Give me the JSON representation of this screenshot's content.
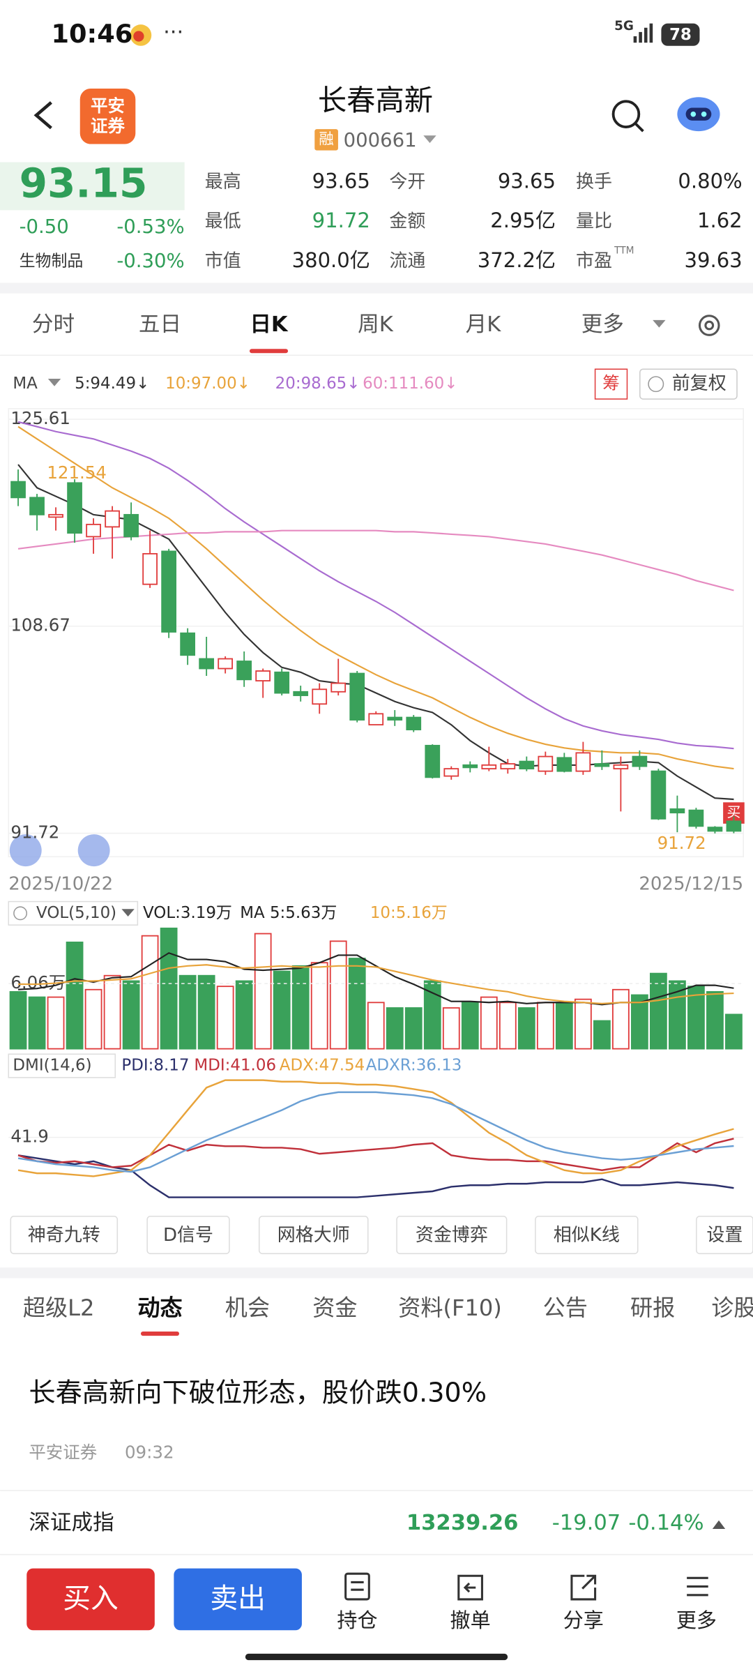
{
  "status_bar": {
    "time": "10:46",
    "network": "5G",
    "battery": "78"
  },
  "header": {
    "logo_line1": "平安",
    "logo_line2": "证券",
    "name": "长春高新",
    "badge": "融",
    "code": "000661"
  },
  "quote": {
    "price": "93.15",
    "change": "-0.50",
    "change_pct": "-0.53%",
    "sector": "生物制品",
    "sector_pct": "-0.30%",
    "fields": [
      {
        "label": "最高",
        "value": "93.65"
      },
      {
        "label": "今开",
        "value": "93.65"
      },
      {
        "label": "换手",
        "value": "0.80%"
      },
      {
        "label": "最低",
        "value": "91.72",
        "color": "#2f9e58"
      },
      {
        "label": "金额",
        "value": "2.95亿"
      },
      {
        "label": "量比",
        "value": "1.62"
      },
      {
        "label": "市值",
        "value": "380.0亿"
      },
      {
        "label": "流通",
        "value": "372.2亿"
      },
      {
        "label": "市盈",
        "sup": "TTM",
        "value": "39.63"
      }
    ]
  },
  "tabs": {
    "items": [
      "分时",
      "五日",
      "日K",
      "周K",
      "月K",
      "更多"
    ],
    "active": 2
  },
  "chart_data": [
    {
      "type": "candlestick",
      "legend_title": "MA",
      "chip_button": "筹",
      "adjust_button": "前复权",
      "annotations": {
        "high": "121.54",
        "low": "91.72",
        "buy_marker": "买"
      },
      "categories": [
        "2025/10/22",
        null,
        null,
        null,
        null,
        null,
        null,
        null,
        null,
        null,
        null,
        null,
        null,
        null,
        null,
        null,
        null,
        null,
        null,
        null,
        null,
        null,
        null,
        null,
        null,
        null,
        null,
        null,
        null,
        null,
        null,
        null,
        null,
        null,
        null,
        null,
        null,
        null,
        "2025/12/15"
      ],
      "open": [
        120.5,
        119.2,
        117.6,
        120.4,
        116.0,
        116.8,
        117.8,
        112.1,
        114.8,
        108.1,
        106.0,
        105.2,
        105.8,
        104.2,
        104.9,
        103.3,
        102.3,
        103.3,
        104.8,
        100.6,
        101.2,
        101.2,
        98.9,
        96.4,
        97.3,
        97.0,
        97.0,
        97.6,
        96.8,
        97.9,
        96.8,
        97.4,
        97.0,
        98.0,
        96.8,
        93.7,
        93.6,
        92.2,
        92.7
      ],
      "close": [
        119.2,
        117.8,
        117.8,
        116.3,
        117.0,
        118.1,
        116.0,
        114.6,
        108.2,
        106.3,
        105.2,
        106.0,
        104.3,
        105.0,
        103.2,
        103.0,
        103.5,
        104.0,
        101.0,
        101.5,
        101.0,
        100.2,
        96.3,
        97.0,
        97.1,
        97.3,
        97.4,
        97.0,
        98.0,
        96.8,
        98.3,
        97.2,
        97.3,
        97.2,
        92.9,
        93.4,
        92.3,
        91.9,
        91.9
      ],
      "high": [
        121.5,
        119.5,
        118.4,
        120.7,
        117.5,
        118.5,
        118.8,
        116.5,
        115.0,
        108.5,
        107.8,
        106.2,
        106.6,
        105.2,
        105.2,
        103.8,
        104.0,
        106.0,
        105.0,
        101.7,
        101.8,
        101.4,
        99.0,
        97.2,
        97.6,
        98.8,
        97.8,
        98.0,
        98.4,
        98.3,
        99.2,
        98.5,
        98.0,
        98.5,
        97.0,
        94.8,
        93.8,
        92.3,
        93.1
      ],
      "low": [
        118.5,
        116.5,
        116.5,
        115.5,
        114.6,
        114.2,
        115.7,
        111.8,
        107.7,
        105.5,
        104.6,
        104.8,
        103.7,
        102.8,
        103.0,
        102.5,
        101.5,
        103.0,
        100.8,
        100.6,
        100.5,
        100.0,
        96.2,
        96.1,
        96.7,
        96.8,
        96.6,
        96.8,
        96.5,
        96.7,
        96.5,
        96.9,
        93.5,
        96.9,
        92.8,
        91.8,
        92.1,
        91.7,
        91.72
      ],
      "up_color": "#e03c3c",
      "down_color": "#3aa15a",
      "ylim": [
        89.62,
        126.48
      ],
      "yticks": [
        125.61,
        108.67,
        91.72
      ],
      "grid": true,
      "series": [
        {
          "name": "5:94.49↓",
          "color": "#333333",
          "values": [
            121.9,
            120.0,
            119.3,
            118.6,
            117.8,
            117.6,
            117.4,
            116.6,
            115.8,
            113.8,
            111.8,
            109.8,
            108.0,
            106.5,
            105.3,
            104.9,
            104.2,
            104.0,
            103.9,
            103.2,
            102.5,
            102.0,
            101.6,
            100.6,
            99.3,
            98.3,
            97.4,
            97.2,
            97.3,
            97.3,
            97.3,
            97.4,
            97.5,
            97.6,
            97.5,
            96.4,
            95.5,
            94.6,
            94.49
          ]
        },
        {
          "name": "10:97.00↓",
          "color": "#e8a33a",
          "values": [
            125.0,
            124.0,
            123.0,
            122.0,
            121.0,
            120.0,
            119.2,
            118.4,
            117.5,
            116.3,
            115.0,
            113.6,
            112.2,
            110.8,
            109.5,
            108.3,
            107.2,
            106.3,
            105.5,
            104.7,
            104.0,
            103.4,
            102.8,
            102.0,
            101.2,
            100.5,
            99.9,
            99.4,
            99.0,
            98.7,
            98.5,
            98.4,
            98.3,
            98.3,
            98.2,
            97.8,
            97.5,
            97.2,
            97.0
          ]
        },
        {
          "name": "20:98.65↓",
          "color": "#a86bd0",
          "values": [
            125.4,
            125.0,
            124.6,
            124.3,
            124.0,
            123.5,
            123.0,
            122.4,
            121.6,
            120.6,
            119.5,
            118.3,
            117.2,
            116.2,
            115.2,
            114.2,
            113.2,
            112.3,
            111.5,
            110.7,
            109.8,
            108.8,
            107.8,
            106.8,
            105.8,
            104.8,
            103.8,
            102.8,
            101.9,
            101.1,
            100.5,
            100.1,
            99.8,
            99.6,
            99.4,
            99.1,
            98.9,
            98.8,
            98.65
          ]
        },
        {
          "name": "60:111.60↓",
          "color": "#e58ac0",
          "values": [
            115.0,
            115.2,
            115.4,
            115.6,
            115.8,
            115.9,
            116.0,
            116.1,
            116.2,
            116.3,
            116.3,
            116.4,
            116.4,
            116.4,
            116.5,
            116.5,
            116.5,
            116.5,
            116.5,
            116.5,
            116.4,
            116.4,
            116.3,
            116.2,
            116.1,
            116.0,
            115.8,
            115.6,
            115.4,
            115.1,
            114.8,
            114.5,
            114.1,
            113.7,
            113.3,
            112.9,
            112.4,
            112.0,
            111.6
          ]
        }
      ]
    },
    {
      "type": "bar",
      "title": "VOL(5,10)",
      "current": "VOL:3.19万",
      "values": [
        5.3,
        4.8,
        4.8,
        9.9,
        5.5,
        6.8,
        6.3,
        10.5,
        11.2,
        6.8,
        6.8,
        5.8,
        6.3,
        10.7,
        7.2,
        7.7,
        8.0,
        10.0,
        8.4,
        4.3,
        3.8,
        3.8,
        6.3,
        3.8,
        4.3,
        4.8,
        4.3,
        3.8,
        4.3,
        4.3,
        4.6,
        2.6,
        5.5,
        5.0,
        7.0,
        6.3,
        5.8,
        5.3,
        3.19
      ],
      "ylim": [
        0,
        11.7
      ],
      "yticks": [
        {
          "value": 6.06,
          "label": "6.06万"
        }
      ],
      "series": [
        {
          "name": "MA 5:5.63万",
          "color": "#222222",
          "values": [
            5.5,
            5.6,
            5.9,
            6.5,
            6.2,
            6.6,
            6.7,
            7.8,
            8.9,
            8.3,
            8.3,
            8.1,
            7.4,
            7.3,
            7.4,
            7.5,
            8.0,
            8.7,
            8.7,
            7.7,
            6.7,
            6.0,
            5.2,
            4.4,
            4.4,
            4.3,
            4.4,
            4.2,
            4.3,
            4.3,
            4.3,
            4.1,
            4.3,
            4.3,
            4.8,
            5.3,
            5.9,
            5.9,
            5.63
          ]
        },
        {
          "name": "10:5.16万",
          "color": "#e8a33a",
          "values": [
            6.0,
            6.0,
            6.1,
            6.3,
            6.3,
            6.4,
            6.5,
            7.0,
            7.5,
            7.7,
            7.8,
            7.6,
            7.5,
            7.6,
            7.7,
            7.6,
            7.6,
            7.7,
            7.7,
            7.6,
            7.2,
            6.8,
            6.4,
            6.1,
            5.8,
            5.5,
            5.3,
            4.9,
            4.6,
            4.4,
            4.3,
            4.2,
            4.3,
            4.3,
            4.5,
            4.8,
            5.0,
            5.1,
            5.16
          ]
        }
      ]
    },
    {
      "type": "line",
      "title": "DMI(14,6)",
      "ylim": [
        0,
        81.7
      ],
      "yticks": [
        41.9
      ],
      "series": [
        {
          "name": "PDI:8.17",
          "color": "#2b2f6b",
          "values": [
            30,
            28,
            26,
            24,
            26,
            22,
            20,
            10,
            2,
            2,
            2,
            2,
            2,
            2,
            2,
            2,
            2,
            2,
            2,
            3,
            4,
            5,
            6,
            9,
            10,
            10,
            11,
            11,
            12,
            12,
            12,
            14,
            10,
            10,
            11,
            12,
            11,
            10,
            8.17
          ]
        },
        {
          "name": "MDI:41.06",
          "color": "#c0303a",
          "values": [
            30,
            26,
            25,
            26,
            24,
            22,
            23,
            30,
            37,
            33,
            37,
            36,
            36,
            35,
            35,
            34,
            31,
            32,
            33,
            34,
            35,
            37,
            38,
            30,
            28,
            27,
            27,
            26,
            26,
            24,
            22,
            20,
            22,
            22,
            30,
            38,
            32,
            38,
            41.06
          ]
        },
        {
          "name": "ADX:47.54",
          "color": "#e8a33a",
          "values": [
            20,
            18,
            18,
            17,
            16,
            18,
            20,
            30,
            45,
            60,
            75,
            80,
            80,
            80,
            79,
            79,
            78,
            78,
            77,
            77,
            76,
            74,
            72,
            65,
            55,
            45,
            38,
            30,
            25,
            20,
            18,
            18,
            20,
            26,
            30,
            36,
            40,
            44,
            47.54
          ]
        },
        {
          "name": "ADXR:36.13",
          "color": "#6a9fd4",
          "values": [
            28,
            26,
            24,
            23,
            22,
            20,
            19,
            22,
            28,
            34,
            40,
            45,
            50,
            55,
            60,
            66,
            70,
            72,
            72,
            72,
            71,
            70,
            68,
            64,
            58,
            52,
            46,
            40,
            35,
            32,
            30,
            28,
            27,
            28,
            30,
            32,
            34,
            35,
            36.13
          ]
        }
      ]
    }
  ],
  "tools": [
    "神奇九转",
    "D信号",
    "网格大师",
    "资金博弈",
    "相似K线",
    "设置"
  ],
  "news_tabs": {
    "items": [
      "超级L2",
      "动态",
      "机会",
      "资金",
      "资料(F10)",
      "公告",
      "研报",
      "诊股"
    ],
    "active": 1
  },
  "news": {
    "title": "长春高新向下破位形态，股价跌0.30%",
    "source": "平安证券",
    "time": "09:32"
  },
  "index": {
    "name": "深证成指",
    "value": "13239.26",
    "change": "-19.07",
    "change_pct": "-0.14%"
  },
  "bottom_bar": {
    "buy": "买入",
    "sell": "卖出",
    "actions": [
      "持仓",
      "撤单",
      "分享",
      "更多"
    ]
  }
}
